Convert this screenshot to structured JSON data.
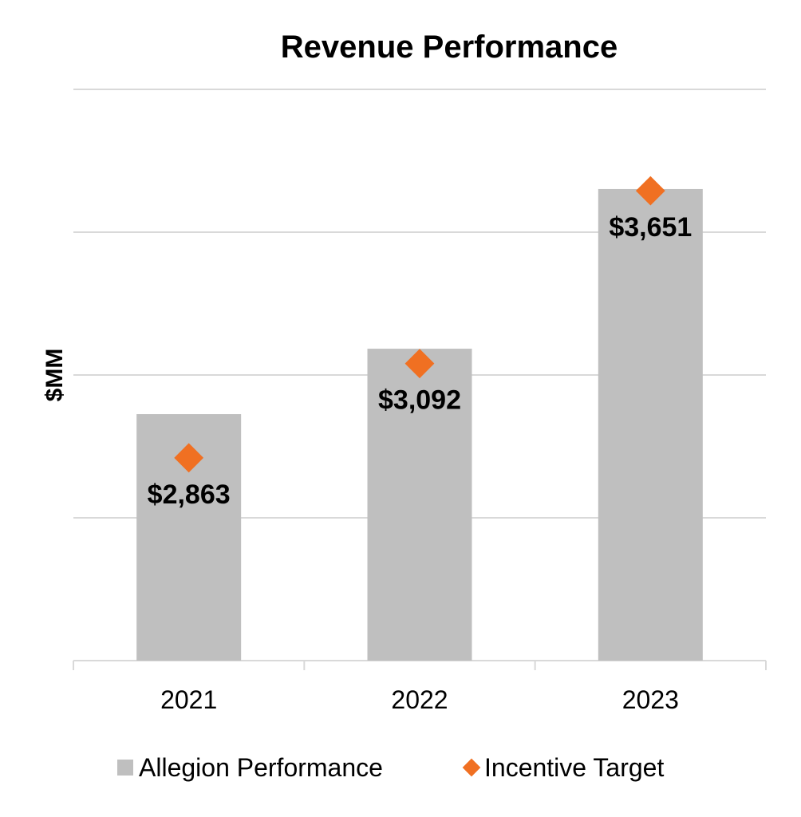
{
  "chart_data": {
    "type": "bar",
    "title": "Revenue Performance",
    "xlabel": "",
    "ylabel": "$MM",
    "categories": [
      "2021",
      "2022",
      "2023"
    ],
    "ylim": [
      2000,
      4000
    ],
    "ygrid": [
      2000,
      2500,
      3000,
      3500,
      4000
    ],
    "y_tick_labels_shown": false,
    "grid": true,
    "legend_position": "bottom",
    "series": [
      {
        "name": "Allegion Performance",
        "type": "bar",
        "color": "#BFBFBF",
        "values": [
          2863,
          3092,
          3651
        ],
        "labels": [
          "$2,863",
          "$3,092",
          "$3,651"
        ]
      },
      {
        "name": "Incentive Target",
        "type": "marker",
        "marker": "diamond",
        "color": "#F07022",
        "values": [
          2710,
          3040,
          3645
        ]
      }
    ]
  }
}
